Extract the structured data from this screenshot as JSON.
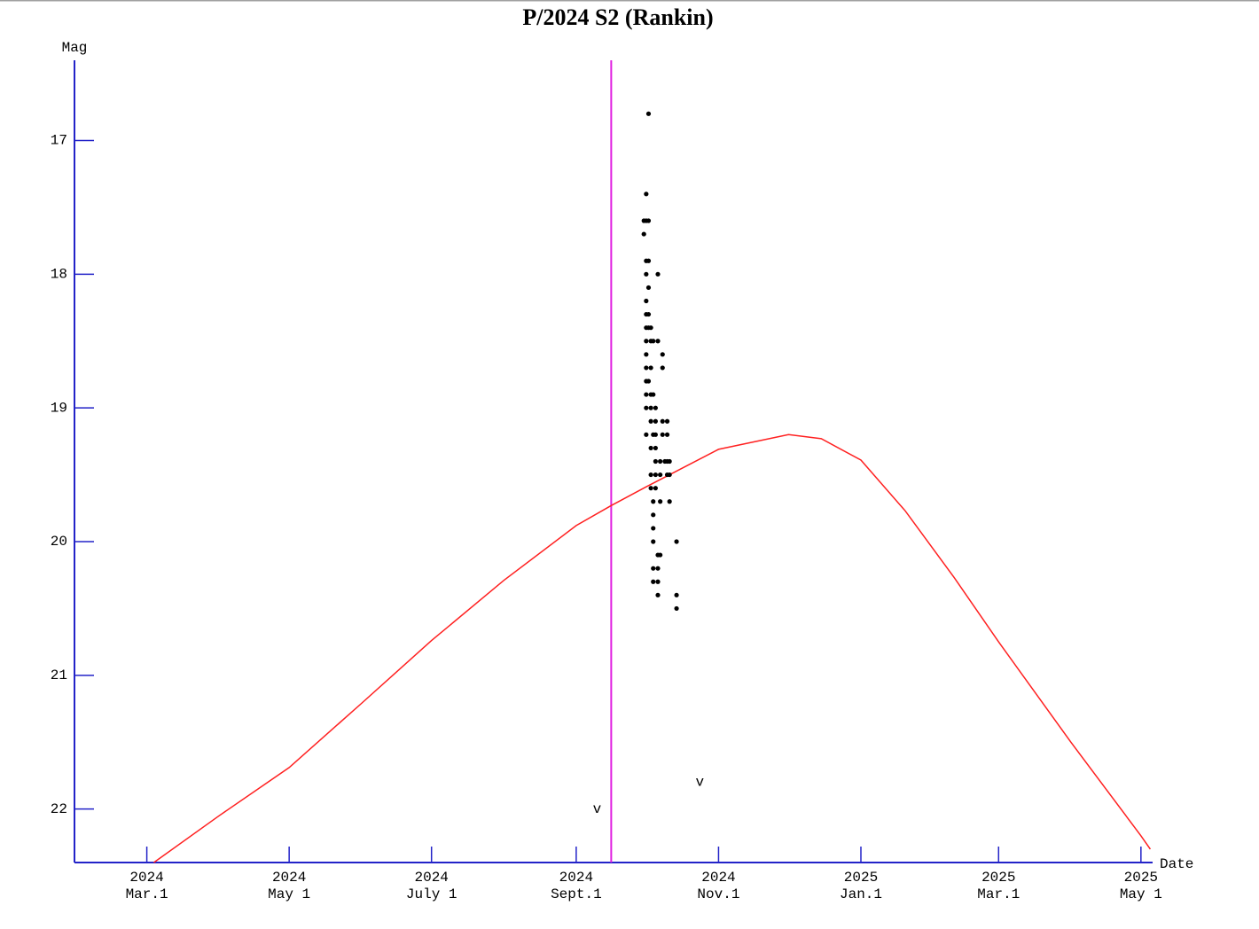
{
  "chart_data": {
    "type": "scatter",
    "title": "P/2024 S2 (Rankin)",
    "y_label": "Mag",
    "x_label": "Date",
    "axis_color": "#2323c8",
    "xlim": [
      "2024-01-30",
      "2025-05-06"
    ],
    "ylim": [
      22.4,
      16.4
    ],
    "xticks": [
      {
        "value": "2024-03-01",
        "label": "2024 Mar.1"
      },
      {
        "value": "2024-05-01",
        "label": "2024 May 1"
      },
      {
        "value": "2024-07-01",
        "label": "2024 July 1"
      },
      {
        "value": "2024-09-01",
        "label": "2024 Sept.1"
      },
      {
        "value": "2024-11-01",
        "label": "2024 Nov.1"
      },
      {
        "value": "2025-01-01",
        "label": "2025 Jan.1"
      },
      {
        "value": "2025-03-01",
        "label": "2025 Mar.1"
      },
      {
        "value": "2025-05-01",
        "label": "2025 May 1"
      }
    ],
    "yticks": [
      17,
      18,
      19,
      20,
      21,
      22
    ],
    "marker_date": {
      "x": "2024-09-16",
      "color": "#e020e0"
    },
    "series": [
      {
        "kind": "line",
        "color": "#ff2020",
        "x": [
          "2024-03-04",
          "2024-04-01",
          "2024-05-01",
          "2024-06-01",
          "2024-07-01",
          "2024-08-01",
          "2024-09-01",
          "2024-09-16",
          "2024-10-01",
          "2024-11-01",
          "2024-12-01",
          "2024-12-15",
          "2025-01-01",
          "2025-01-20",
          "2025-02-10",
          "2025-03-01",
          "2025-04-01",
          "2025-05-01",
          "2025-05-05"
        ],
        "values": [
          22.4,
          22.05,
          21.69,
          21.21,
          20.74,
          20.29,
          19.88,
          19.73,
          19.59,
          19.31,
          19.2,
          19.23,
          19.39,
          19.77,
          20.27,
          20.75,
          21.5,
          22.2,
          22.3
        ]
      },
      {
        "kind": "points",
        "color": "#000000",
        "x": [
          "2024-10-02",
          "2024-10-01",
          "2024-09-30",
          "2024-10-01",
          "2024-10-02",
          "2024-09-30",
          "2024-10-01",
          "2024-10-02",
          "2024-10-01",
          "2024-10-06",
          "2024-10-02",
          "2024-10-01",
          "2024-10-01",
          "2024-10-02",
          "2024-10-01",
          "2024-10-02",
          "2024-10-03",
          "2024-10-01",
          "2024-10-03",
          "2024-10-04",
          "2024-10-06",
          "2024-10-01",
          "2024-10-08",
          "2024-10-01",
          "2024-10-03",
          "2024-10-08",
          "2024-10-01",
          "2024-10-02",
          "2024-10-01",
          "2024-10-03",
          "2024-10-04",
          "2024-10-01",
          "2024-10-03",
          "2024-10-05",
          "2024-10-03",
          "2024-10-05",
          "2024-10-08",
          "2024-10-10",
          "2024-10-01",
          "2024-10-04",
          "2024-10-05",
          "2024-10-08",
          "2024-10-10",
          "2024-10-03",
          "2024-10-05",
          "2024-10-05",
          "2024-10-07",
          "2024-10-09",
          "2024-10-10",
          "2024-10-11",
          "2024-10-03",
          "2024-10-05",
          "2024-10-07",
          "2024-10-10",
          "2024-10-11",
          "2024-10-03",
          "2024-10-05",
          "2024-10-04",
          "2024-10-07",
          "2024-10-11",
          "2024-10-04",
          "2024-10-04",
          "2024-10-04",
          "2024-10-14",
          "2024-10-06",
          "2024-10-07",
          "2024-10-04",
          "2024-10-06",
          "2024-10-04",
          "2024-10-06",
          "2024-10-06",
          "2024-10-14",
          "2024-10-14"
        ],
        "values": [
          16.8,
          17.4,
          17.6,
          17.6,
          17.6,
          17.7,
          17.9,
          17.9,
          18.0,
          18.0,
          18.1,
          18.2,
          18.3,
          18.3,
          18.4,
          18.4,
          18.4,
          18.5,
          18.5,
          18.5,
          18.5,
          18.6,
          18.6,
          18.7,
          18.7,
          18.7,
          18.8,
          18.8,
          18.9,
          18.9,
          18.9,
          19.0,
          19.0,
          19.0,
          19.1,
          19.1,
          19.1,
          19.1,
          19.2,
          19.2,
          19.2,
          19.2,
          19.2,
          19.3,
          19.3,
          19.4,
          19.4,
          19.4,
          19.4,
          19.4,
          19.5,
          19.5,
          19.5,
          19.5,
          19.5,
          19.6,
          19.6,
          19.7,
          19.7,
          19.7,
          19.8,
          19.9,
          20.0,
          20.0,
          20.1,
          20.1,
          20.2,
          20.2,
          20.3,
          20.3,
          20.4,
          20.4,
          20.5
        ]
      },
      {
        "kind": "limits",
        "color": "#000000",
        "marker": "v",
        "x": [
          "2024-09-13",
          "2024-10-27"
        ],
        "values": [
          22.0,
          21.8
        ]
      }
    ]
  }
}
